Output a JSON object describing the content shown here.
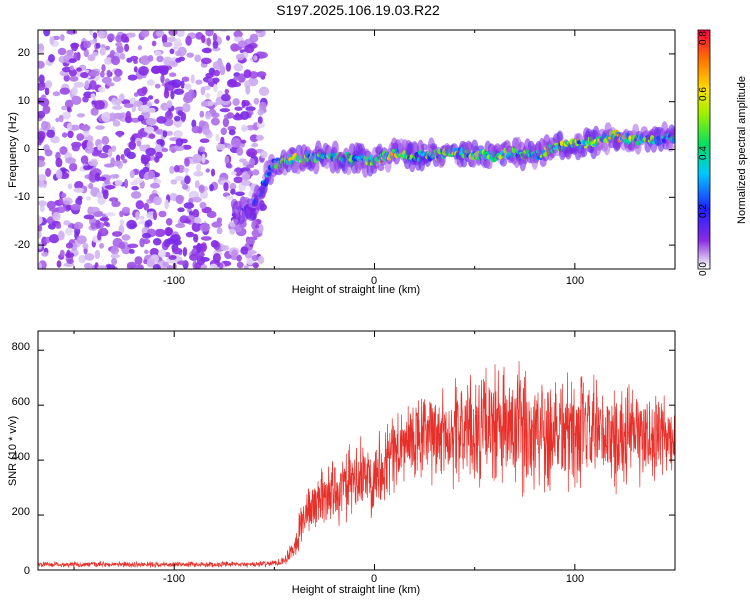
{
  "title": "S197.2025.106.19.03.R22",
  "chart_data": [
    {
      "type": "heatmap",
      "xlabel": "Height of straight line (km)",
      "ylabel": "Frequency (Hz)",
      "xlim": [
        -168,
        150
      ],
      "ylim": [
        -25,
        25
      ],
      "xticks": [
        "-100",
        "0",
        "100"
      ],
      "yticks": [
        "-20",
        "-10",
        "0",
        "10",
        "20"
      ],
      "colorbar": {
        "label": "Normalized spectral amplitude",
        "range": [
          0,
          0.8
        ],
        "ticks": [
          "0.0",
          "0.2",
          "0.4",
          "0.6",
          "0.8"
        ],
        "colormap": "rainbow (purple-blue-cyan-green-yellow-red)"
      },
      "noise_region": {
        "x": [
          -168,
          -55
        ],
        "y": [
          -25,
          25
        ],
        "amplitude": [
          0.02,
          0.12
        ]
      },
      "signal_track": {
        "x": [
          -70,
          -60,
          -55,
          -50,
          -45,
          -40,
          -30,
          -20,
          -10,
          0,
          10,
          20,
          30,
          40,
          50,
          60,
          70,
          80,
          90,
          100,
          110,
          120,
          130,
          140,
          150
        ],
        "freq": [
          -13,
          -12,
          -7,
          -3,
          -2.5,
          -2,
          -1.5,
          -1.5,
          -2,
          -2.5,
          -0.5,
          -1.5,
          -1,
          -0.5,
          -1,
          -1.5,
          -0.5,
          -1.5,
          0.5,
          1,
          1.5,
          3,
          2,
          2,
          2.5
        ],
        "peak_amplitude": [
          0.15,
          0.2,
          0.3,
          0.45,
          0.6,
          0.7,
          0.55,
          0.5,
          0.55,
          0.65,
          0.7,
          0.5,
          0.55,
          0.6,
          0.55,
          0.6,
          0.5,
          0.55,
          0.6,
          0.55,
          0.65,
          0.75,
          0.6,
          0.55,
          0.5
        ]
      }
    },
    {
      "type": "line",
      "xlabel": "Height of straight line (km)",
      "ylabel": "SNR (10 * v/v)",
      "xlim": [
        -168,
        150
      ],
      "ylim": [
        0,
        870
      ],
      "xticks": [
        "-100",
        "0",
        "100"
      ],
      "yticks": [
        "0",
        "200",
        "400",
        "600",
        "800"
      ],
      "color": "#e8302a",
      "series": [
        {
          "x": [
            -168,
            -150,
            -120,
            -100,
            -80,
            -60,
            -50,
            -45,
            -40,
            -35,
            -30,
            -25,
            -20,
            -15,
            -10,
            -5,
            0,
            5,
            10,
            15,
            20,
            25,
            30,
            40,
            50,
            60,
            70,
            80,
            90,
            100,
            110,
            120,
            130,
            140,
            150
          ],
          "y": [
            20,
            20,
            20,
            20,
            20,
            20,
            25,
            35,
            90,
            200,
            240,
            270,
            290,
            300,
            320,
            340,
            350,
            400,
            430,
            450,
            470,
            480,
            490,
            500,
            510,
            520,
            500,
            510,
            520,
            500,
            490,
            480,
            490,
            480,
            480
          ],
          "noise": [
            8,
            8,
            8,
            8,
            8,
            8,
            10,
            15,
            40,
            70,
            80,
            90,
            95,
            100,
            110,
            110,
            110,
            120,
            120,
            125,
            130,
            130,
            140,
            150,
            160,
            180,
            190,
            190,
            190,
            170,
            160,
            150,
            140,
            130,
            120
          ]
        }
      ]
    }
  ]
}
